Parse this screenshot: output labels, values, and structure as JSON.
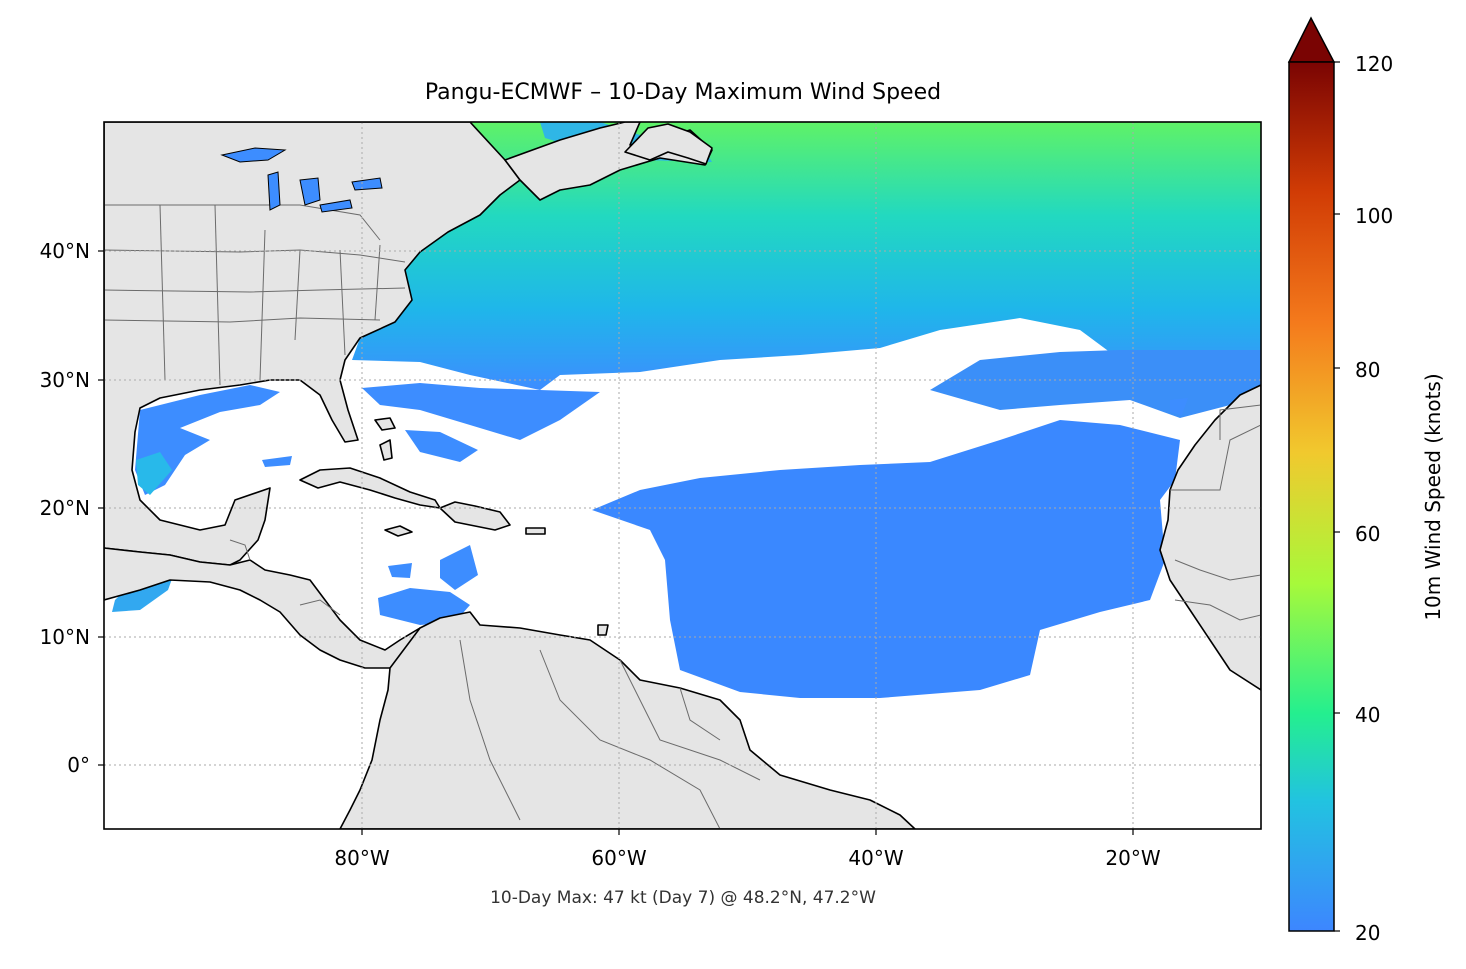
{
  "title": "Pangu-ECMWF – 10-Day Maximum Wind Speed",
  "footer": "10-Day Max: 47 kt (Day 7) @ 48.2°N, 47.2°W",
  "map": {
    "lat_labels": [
      "40°N",
      "30°N",
      "20°N",
      "10°N",
      "0°"
    ],
    "lon_labels": [
      "80°W",
      "60°W",
      "40°W",
      "20°W"
    ],
    "gridlines": true,
    "land_color": "#e5e5e5",
    "coastline_color": "#000000",
    "border_color": "#6b6b6b"
  },
  "colorbar": {
    "label": "10m Wind Speed (knots)",
    "ticks": [
      "120",
      "100",
      "80",
      "60",
      "40",
      "20"
    ],
    "range": [
      20,
      120
    ],
    "extend": "max",
    "colormap": [
      "#3d86ff",
      "#22c3e0",
      "#24ef8f",
      "#a7f93a",
      "#f1c92e",
      "#f47a1c",
      "#d13c05",
      "#7a0403"
    ]
  }
}
